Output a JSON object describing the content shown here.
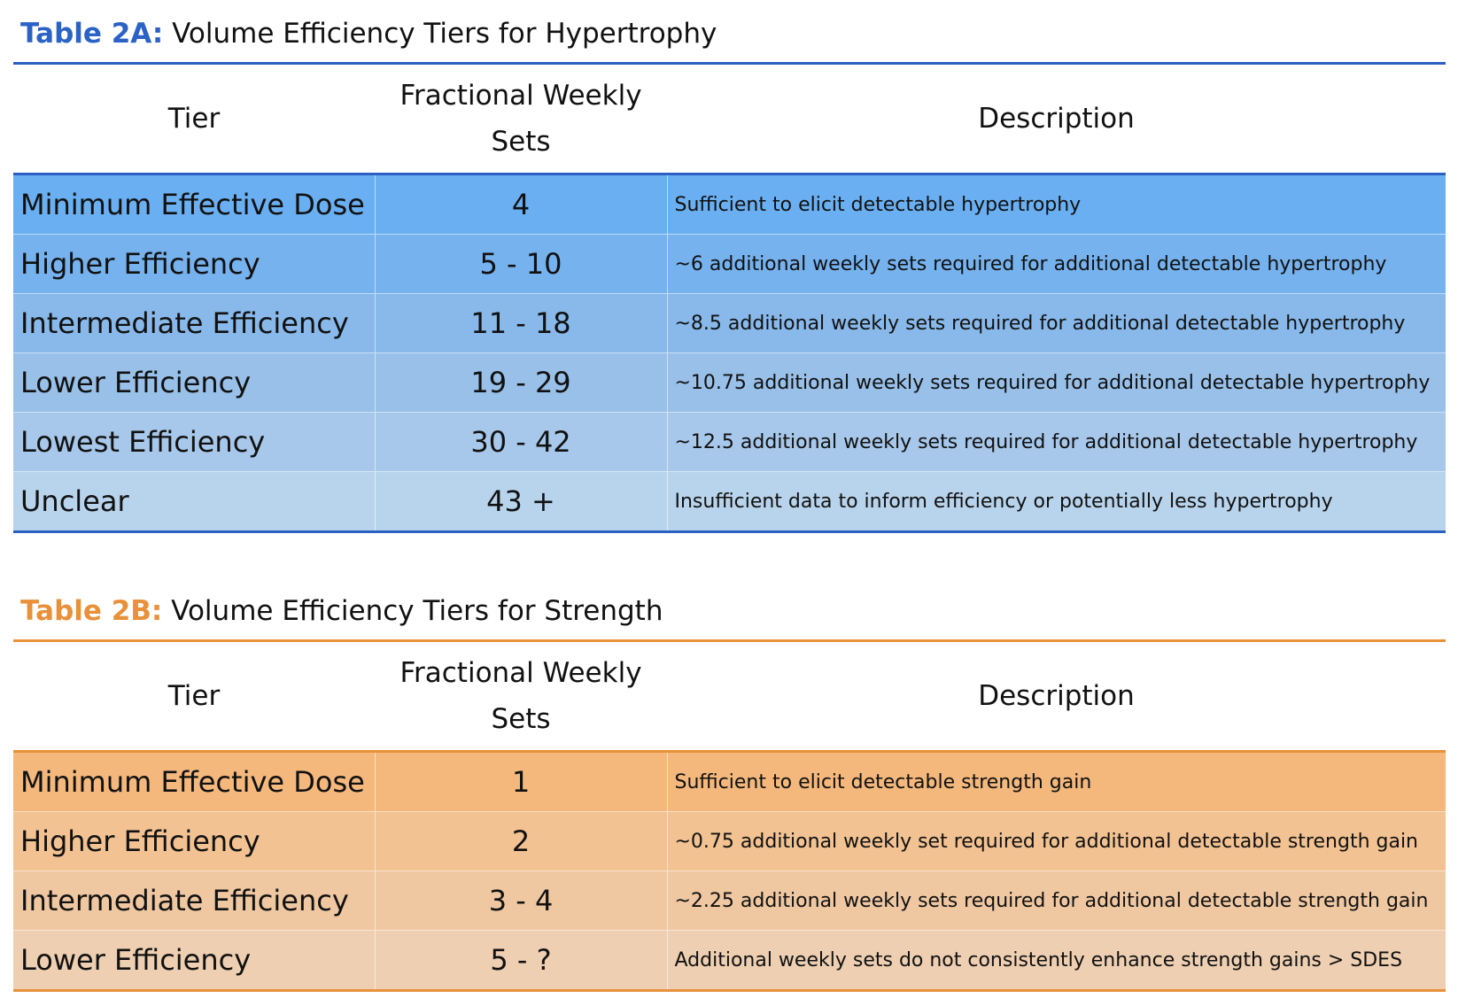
{
  "table_a": {
    "label": "Table 2A:",
    "title": " Volume Efficiency Tiers for Hypertrophy",
    "headers": {
      "tier": "Tier",
      "sets": "Fractional Weekly Sets",
      "description": "Description"
    },
    "colors": [
      "#6aaff1",
      "#76b2ee",
      "#88b9ea",
      "#98c0e8",
      "#a7c8ea",
      "#b8d4ec"
    ],
    "rows": [
      {
        "tier": "Minimum Effective Dose",
        "sets": "4",
        "description": "Sufficient to elicit detectable hypertrophy"
      },
      {
        "tier": "Higher Efficiency",
        "sets": "5 - 10",
        "description": "~6 additional weekly sets required for additional detectable hypertrophy"
      },
      {
        "tier": "Intermediate Efficiency",
        "sets": "11 - 18",
        "description": "~8.5 additional weekly sets required for additional detectable hypertrophy"
      },
      {
        "tier": "Lower Efficiency",
        "sets": "19 - 29",
        "description": "~10.75 additional weekly sets required for additional detectable hypertrophy"
      },
      {
        "tier": "Lowest Efficiency",
        "sets": "30 - 42",
        "description": "~12.5 additional weekly sets required for additional detectable hypertrophy"
      },
      {
        "tier": "Unclear",
        "sets": "43 +",
        "description": "Insufficient data to inform efficiency or potentially less hypertrophy"
      }
    ]
  },
  "table_b": {
    "label": "Table 2B:",
    "title": " Volume Efficiency Tiers for Strength",
    "headers": {
      "tier": "Tier",
      "sets": "Fractional Weekly Sets",
      "description": "Description"
    },
    "colors": [
      "#f4b87c",
      "#f2c292",
      "#efc8a2",
      "#eecfb2"
    ],
    "rows": [
      {
        "tier": "Minimum Effective Dose",
        "sets": "1",
        "description": "Sufficient to elicit detectable strength gain"
      },
      {
        "tier": "Higher Efficiency",
        "sets": "2",
        "description": "~0.75 additional weekly set required for additional detectable strength gain"
      },
      {
        "tier": "Intermediate Efficiency",
        "sets": "3 - 4",
        "description": "~2.25 additional weekly sets required for additional detectable strength gain"
      },
      {
        "tier": "Lower Efficiency",
        "sets": "5 - ?",
        "description": "Additional weekly sets do not consistently enhance strength gains > SDES"
      }
    ]
  }
}
